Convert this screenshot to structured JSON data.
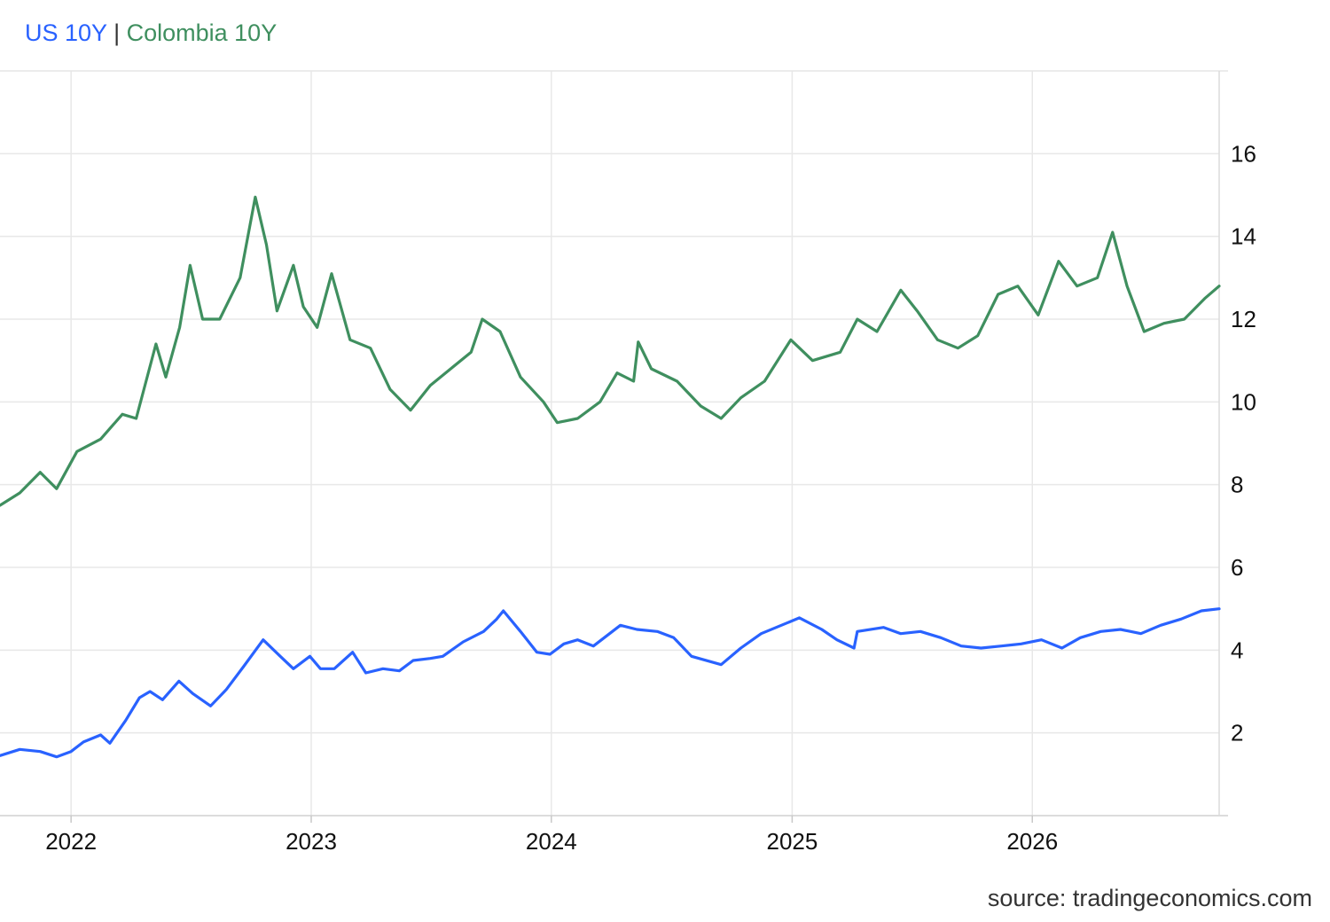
{
  "chart_data": {
    "type": "line",
    "title": "",
    "xlabel": "",
    "ylabel": "",
    "x_ticks": [
      "2022",
      "2023",
      "2024",
      "2025",
      "2026"
    ],
    "y_ticks": [
      "2",
      "4",
      "6",
      "8",
      "10",
      "12",
      "14",
      "16"
    ],
    "xlim": [
      "2021-09-15",
      "2026-10-12"
    ],
    "ylim": [
      0,
      18
    ],
    "grid": true,
    "legend_position": "top-left",
    "series": [
      {
        "name": "US 10Y",
        "color": "#2962ff",
        "points": [
          [
            "2021-09-15",
            1.45
          ],
          [
            "2021-10-15",
            1.6
          ],
          [
            "2021-11-15",
            1.55
          ],
          [
            "2021-12-10",
            1.42
          ],
          [
            "2022-01-01",
            1.55
          ],
          [
            "2022-01-20",
            1.78
          ],
          [
            "2022-02-15",
            1.95
          ],
          [
            "2022-03-01",
            1.75
          ],
          [
            "2022-03-25",
            2.3
          ],
          [
            "2022-04-15",
            2.85
          ],
          [
            "2022-05-01",
            3.0
          ],
          [
            "2022-05-20",
            2.8
          ],
          [
            "2022-06-14",
            3.25
          ],
          [
            "2022-07-05",
            2.95
          ],
          [
            "2022-08-01",
            2.65
          ],
          [
            "2022-08-25",
            3.05
          ],
          [
            "2022-09-20",
            3.6
          ],
          [
            "2022-10-20",
            4.25
          ],
          [
            "2022-11-15",
            3.85
          ],
          [
            "2022-12-05",
            3.55
          ],
          [
            "2022-12-30",
            3.85
          ],
          [
            "2023-01-15",
            3.55
          ],
          [
            "2023-02-05",
            3.55
          ],
          [
            "2023-03-05",
            3.95
          ],
          [
            "2023-03-25",
            3.45
          ],
          [
            "2023-04-20",
            3.55
          ],
          [
            "2023-05-15",
            3.5
          ],
          [
            "2023-06-05",
            3.75
          ],
          [
            "2023-07-01",
            3.8
          ],
          [
            "2023-07-20",
            3.85
          ],
          [
            "2023-08-20",
            4.2
          ],
          [
            "2023-09-20",
            4.45
          ],
          [
            "2023-10-10",
            4.75
          ],
          [
            "2023-10-20",
            4.95
          ],
          [
            "2023-11-15",
            4.45
          ],
          [
            "2023-12-10",
            3.95
          ],
          [
            "2023-12-30",
            3.9
          ],
          [
            "2024-01-20",
            4.15
          ],
          [
            "2024-02-10",
            4.25
          ],
          [
            "2024-03-05",
            4.1
          ],
          [
            "2024-04-15",
            4.6
          ],
          [
            "2024-05-10",
            4.5
          ],
          [
            "2024-06-10",
            4.45
          ],
          [
            "2024-07-05",
            4.3
          ],
          [
            "2024-08-01",
            3.85
          ],
          [
            "2024-09-15",
            3.65
          ],
          [
            "2024-10-15",
            4.05
          ],
          [
            "2024-11-15",
            4.4
          ],
          [
            "2025-01-12",
            4.78
          ],
          [
            "2025-02-15",
            4.5
          ],
          [
            "2025-03-10",
            4.25
          ],
          [
            "2025-04-05",
            4.05
          ],
          [
            "2025-04-10",
            4.45
          ],
          [
            "2025-05-20",
            4.55
          ],
          [
            "2025-06-15",
            4.4
          ],
          [
            "2025-07-15",
            4.45
          ],
          [
            "2025-08-15",
            4.3
          ],
          [
            "2025-09-15",
            4.1
          ],
          [
            "2025-10-15",
            4.05
          ],
          [
            "2025-11-15",
            4.1
          ],
          [
            "2025-12-15",
            4.15
          ],
          [
            "2026-01-15",
            4.25
          ],
          [
            "2026-02-15",
            4.05
          ],
          [
            "2026-03-15",
            4.3
          ],
          [
            "2026-04-15",
            4.45
          ],
          [
            "2026-05-15",
            4.5
          ],
          [
            "2026-06-15",
            4.4
          ],
          [
            "2026-07-15",
            4.6
          ],
          [
            "2026-08-15",
            4.75
          ],
          [
            "2026-09-15",
            4.95
          ],
          [
            "2026-10-12",
            5.0
          ]
        ]
      },
      {
        "name": "Colombia 10Y",
        "color": "#3f8f5f",
        "points": [
          [
            "2021-09-15",
            7.5
          ],
          [
            "2021-10-15",
            7.8
          ],
          [
            "2021-11-15",
            8.3
          ],
          [
            "2021-12-10",
            7.9
          ],
          [
            "2022-01-10",
            8.8
          ],
          [
            "2022-02-15",
            9.1
          ],
          [
            "2022-03-20",
            9.7
          ],
          [
            "2022-04-10",
            9.6
          ],
          [
            "2022-05-10",
            11.4
          ],
          [
            "2022-05-25",
            10.6
          ],
          [
            "2022-06-15",
            11.8
          ],
          [
            "2022-07-01",
            13.3
          ],
          [
            "2022-07-20",
            12.0
          ],
          [
            "2022-08-15",
            12.0
          ],
          [
            "2022-09-15",
            13.0
          ],
          [
            "2022-10-08",
            14.95
          ],
          [
            "2022-10-25",
            13.8
          ],
          [
            "2022-11-10",
            12.2
          ],
          [
            "2022-12-05",
            13.3
          ],
          [
            "2022-12-20",
            12.3
          ],
          [
            "2023-01-10",
            11.8
          ],
          [
            "2023-02-01",
            13.1
          ],
          [
            "2023-03-01",
            11.5
          ],
          [
            "2023-04-01",
            11.3
          ],
          [
            "2023-05-01",
            10.3
          ],
          [
            "2023-06-01",
            9.8
          ],
          [
            "2023-07-01",
            10.4
          ],
          [
            "2023-08-01",
            10.8
          ],
          [
            "2023-09-01",
            11.2
          ],
          [
            "2023-09-18",
            12.0
          ],
          [
            "2023-10-15",
            11.7
          ],
          [
            "2023-11-15",
            10.6
          ],
          [
            "2023-12-20",
            10.0
          ],
          [
            "2024-01-10",
            9.5
          ],
          [
            "2024-02-10",
            9.6
          ],
          [
            "2024-03-15",
            10.0
          ],
          [
            "2024-04-10",
            10.7
          ],
          [
            "2024-05-05",
            10.5
          ],
          [
            "2024-05-12",
            11.45
          ],
          [
            "2024-06-01",
            10.8
          ],
          [
            "2024-07-10",
            10.5
          ],
          [
            "2024-08-15",
            9.9
          ],
          [
            "2024-09-15",
            9.6
          ],
          [
            "2024-10-15",
            10.1
          ],
          [
            "2024-11-20",
            10.5
          ],
          [
            "2024-12-30",
            11.5
          ],
          [
            "2025-02-01",
            11.0
          ],
          [
            "2025-03-15",
            11.2
          ],
          [
            "2025-04-10",
            12.0
          ],
          [
            "2025-05-10",
            11.7
          ],
          [
            "2025-06-15",
            12.7
          ],
          [
            "2025-07-10",
            12.2
          ],
          [
            "2025-08-10",
            11.5
          ],
          [
            "2025-09-10",
            11.3
          ],
          [
            "2025-10-10",
            11.6
          ],
          [
            "2025-11-10",
            12.6
          ],
          [
            "2025-12-10",
            12.8
          ],
          [
            "2026-01-10",
            12.1
          ],
          [
            "2026-02-10",
            13.4
          ],
          [
            "2026-03-10",
            12.8
          ],
          [
            "2026-04-10",
            13.0
          ],
          [
            "2026-05-03",
            14.1
          ],
          [
            "2026-05-25",
            12.8
          ],
          [
            "2026-06-20",
            11.7
          ],
          [
            "2026-07-20",
            11.9
          ],
          [
            "2026-08-20",
            12.0
          ],
          [
            "2026-09-20",
            12.5
          ],
          [
            "2026-10-12",
            12.8
          ]
        ]
      }
    ]
  },
  "source": "source: tradingeconomics.com"
}
